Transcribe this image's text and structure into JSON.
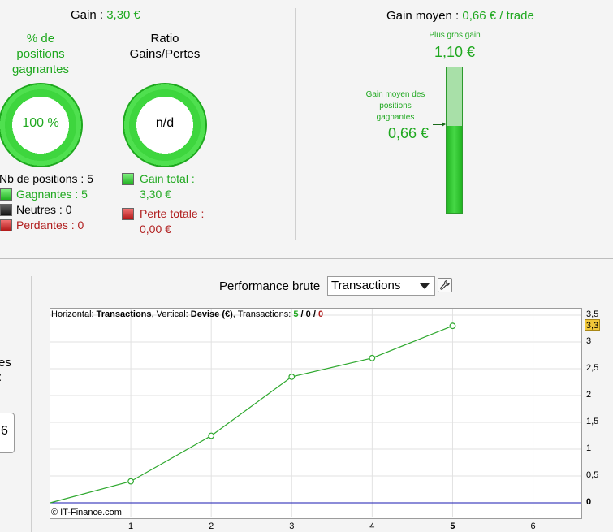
{
  "summary": {
    "gain_label": "Gain : ",
    "gain_value": "3,30 €",
    "pct_label": "% de positions gagnantes",
    "pct_value": "100 %",
    "ratio_label": "Ratio Gains/Pertes",
    "ratio_value": "n/d",
    "nb_positions": "Nb de positions : 5",
    "gagnantes": "Gagnantes : 5",
    "neutres": "Neutres : 0",
    "perdantes": "Perdantes : 0",
    "gain_total_label": "Gain total :",
    "gain_total_value": "3,30 €",
    "perte_totale_label": "Perte totale :",
    "perte_totale_value": "0,00 €",
    "colors": {
      "green": "#1fa81f",
      "red": "#b01c1c"
    }
  },
  "gain_moyen": {
    "label": "Gain moyen : ",
    "value": "0,66 € / trade",
    "max_label": "Plus gros gain",
    "max_value": "1,10 €",
    "avg_label": "Gain moyen des positions gagnantes",
    "avg_value": "0,66 €",
    "fill_fraction": 0.6
  },
  "left_panel": {
    "partial_text_1": "es",
    "partial_text_2": ":",
    "stub_value": "6"
  },
  "performance": {
    "title": "Performance brute",
    "select_value": "Transactions",
    "tool_icon": "wrench-icon"
  },
  "chart_info": {
    "h_label": "Horizontal: ",
    "h_value": "Transactions",
    "v_label": ", Vertical: ",
    "v_value": "Devise (€)",
    "t_label": ", Transactions: ",
    "t_win": "5",
    "sep1": " / ",
    "t_neutral": "0",
    "sep2": " / ",
    "t_loss": "0",
    "credit": "© IT-Finance.com",
    "current_value": "3,3"
  },
  "chart_data": {
    "type": "line",
    "x": [
      0,
      1,
      2,
      3,
      4,
      5
    ],
    "series": [
      {
        "values": [
          0,
          0.4,
          1.25,
          2.35,
          2.7,
          3.3
        ],
        "color": "#2ea82e"
      }
    ],
    "zero_line_color": "#1a1ab0",
    "xticks": [
      "1",
      "2",
      "3",
      "4",
      "5",
      "6"
    ],
    "yticks": [
      "3,5",
      "3",
      "2,5",
      "2",
      "1,5",
      "1",
      "0,5",
      "0"
    ],
    "xlim": [
      0,
      6.6
    ],
    "ylim": [
      0,
      3.5
    ]
  }
}
